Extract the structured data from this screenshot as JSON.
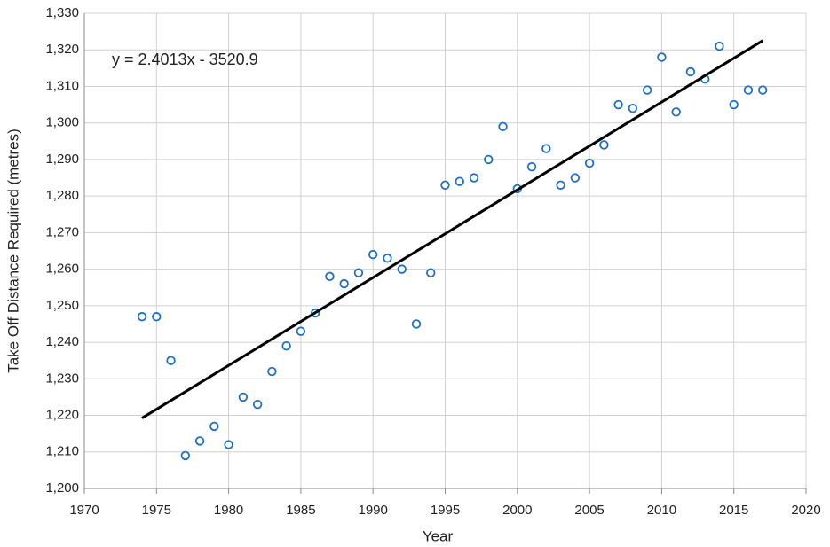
{
  "chart_data": {
    "type": "scatter",
    "x_label": "Year",
    "y_label": "Take Off Distance Required (metres)",
    "x": [
      1974,
      1975,
      1976,
      1977,
      1978,
      1979,
      1980,
      1981,
      1982,
      1983,
      1984,
      1985,
      1986,
      1987,
      1988,
      1989,
      1990,
      1991,
      1992,
      1993,
      1994,
      1995,
      1996,
      1997,
      1998,
      1999,
      2000,
      2001,
      2002,
      2003,
      2004,
      2005,
      2006,
      2007,
      2008,
      2009,
      2010,
      2011,
      2012,
      2013,
      2014,
      2015,
      2016,
      2017
    ],
    "series": [
      {
        "color": "#1f6fc5",
        "values": [
          1247,
          1247,
          1235,
          1209,
          1213,
          1217,
          1212,
          1225,
          1223,
          1232,
          1239,
          1243,
          1248,
          1258,
          1256,
          1259,
          1264,
          1263,
          1260,
          1245,
          1259,
          1283,
          1284,
          1285,
          1290,
          1299,
          1282,
          1288,
          1293,
          1283,
          1285,
          1289,
          1294,
          1305,
          1304,
          1309,
          1318,
          1303,
          1314,
          1312,
          1321,
          1305,
          1309,
          1309
        ]
      }
    ],
    "trendline": {
      "label": "y = 2.4013x - 3520.9",
      "slope": 2.4013,
      "intercept": -3520.9,
      "color": "#000000"
    },
    "xlim": [
      1970,
      2020
    ],
    "xticks": [
      1970,
      1975,
      1980,
      1985,
      1990,
      1995,
      2000,
      2005,
      2010,
      2015,
      2020
    ],
    "ylim": [
      1200,
      1330
    ],
    "yticks": [
      {
        "value": 1200,
        "label": "1,200"
      },
      {
        "value": 1210,
        "label": "1,210"
      },
      {
        "value": 1220,
        "label": "1,220"
      },
      {
        "value": 1230,
        "label": "1,230"
      },
      {
        "value": 1240,
        "label": "1,240"
      },
      {
        "value": 1250,
        "label": "1,250"
      },
      {
        "value": 1260,
        "label": "1,260"
      },
      {
        "value": 1270,
        "label": "1,270"
      },
      {
        "value": 1280,
        "label": "1,280"
      },
      {
        "value": 1290,
        "label": "1,290"
      },
      {
        "value": 1300,
        "label": "1,300"
      },
      {
        "value": 1310,
        "label": "1,310"
      },
      {
        "value": 1320,
        "label": "1,320"
      },
      {
        "value": 1330,
        "label": "1,330"
      }
    ],
    "grid": true
  }
}
